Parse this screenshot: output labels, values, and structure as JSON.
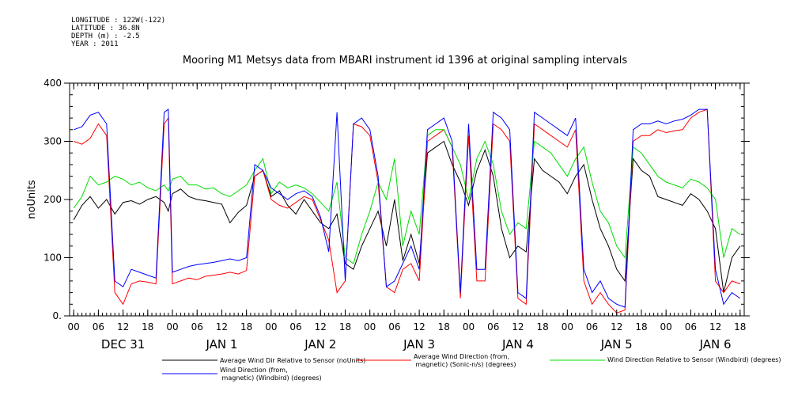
{
  "header": {
    "longitude": "LONGITUDE : 122W(-122)",
    "latitude": "LATITUDE : 36.8N",
    "depth": "DEPTH (m) : -2.5",
    "year": "YEAR : 2011"
  },
  "chart_data": {
    "type": "line",
    "title": "Mooring M1 Metsys data from MBARI instrument id 1396 at original sampling intervals",
    "ylabel": "noUnits",
    "xlabel": "",
    "ylim": [
      0,
      400
    ],
    "y_ticks": [
      0,
      100,
      200,
      300,
      400
    ],
    "y_tick_labels": [
      "0.",
      "100",
      "200",
      "300",
      "400"
    ],
    "x_unit": "hours since 2010-12-31 00:00",
    "xlim": [
      -1,
      163
    ],
    "hour_tick_labels": [
      "00",
      "06",
      "12",
      "18",
      "00",
      "06",
      "12",
      "18",
      "00",
      "06",
      "12",
      "18",
      "00",
      "06",
      "12",
      "18",
      "00",
      "06",
      "12",
      "18",
      "00",
      "06",
      "12",
      "18",
      "00",
      "06",
      "12",
      "18"
    ],
    "day_labels": [
      "DEC 31",
      "JAN  1",
      "JAN  2",
      "JAN  3",
      "JAN  4",
      "JAN  5",
      "JAN  6"
    ],
    "grid": false,
    "legend_position": "bottom",
    "series": [
      {
        "name": "Average Wind Dir Relative to Sensor (noUnits)",
        "color": "#000000",
        "x": [
          0,
          2,
          4,
          6,
          8,
          10,
          12,
          14,
          16,
          18,
          20,
          22,
          23,
          24,
          26,
          28,
          30,
          32,
          34,
          36,
          38,
          40,
          42,
          44,
          46,
          48,
          50,
          52,
          54,
          56,
          58,
          60,
          62,
          64,
          66,
          68,
          70,
          72,
          74,
          76,
          78,
          80,
          82,
          84,
          86,
          88,
          90,
          92,
          94,
          96,
          98,
          100,
          102,
          104,
          106,
          108,
          110,
          112,
          114,
          116,
          118,
          120,
          122,
          124,
          126,
          128,
          130,
          132,
          134,
          136,
          138,
          140,
          142,
          144,
          146,
          148,
          150,
          152,
          154,
          156,
          158,
          160,
          162
        ],
        "values": [
          165,
          190,
          205,
          185,
          200,
          175,
          195,
          198,
          192,
          200,
          205,
          195,
          180,
          210,
          218,
          205,
          200,
          198,
          195,
          192,
          160,
          178,
          190,
          240,
          250,
          205,
          215,
          190,
          175,
          200,
          180,
          160,
          150,
          175,
          90,
          80,
          120,
          150,
          180,
          120,
          200,
          95,
          140,
          90,
          280,
          290,
          300,
          260,
          230,
          190,
          250,
          285,
          240,
          150,
          100,
          120,
          110,
          270,
          250,
          240,
          230,
          210,
          240,
          260,
          200,
          150,
          120,
          80,
          60,
          270,
          250,
          240,
          205,
          200,
          195,
          190,
          210,
          200,
          180,
          150,
          40,
          100,
          120
        ]
      },
      {
        "name": "Average Wind Direction (from, magnetic) (Sonic-n/s) (degrees)",
        "color": "#ff0000",
        "x": [
          0,
          2,
          4,
          6,
          8,
          10,
          12,
          14,
          16,
          18,
          20,
          22,
          23,
          24,
          26,
          28,
          30,
          32,
          34,
          36,
          38,
          40,
          42,
          44,
          46,
          48,
          50,
          52,
          54,
          56,
          58,
          60,
          62,
          64,
          66,
          68,
          70,
          72,
          74,
          76,
          78,
          80,
          82,
          84,
          86,
          88,
          90,
          92,
          94,
          96,
          98,
          100,
          102,
          104,
          106,
          108,
          110,
          112,
          114,
          116,
          118,
          120,
          122,
          124,
          126,
          128,
          130,
          132,
          134,
          136,
          138,
          140,
          142,
          144,
          146,
          148,
          150,
          152,
          154,
          156,
          158,
          160,
          162
        ],
        "values": [
          300,
          295,
          305,
          330,
          310,
          40,
          20,
          55,
          60,
          58,
          55,
          330,
          340,
          55,
          60,
          65,
          62,
          68,
          70,
          72,
          75,
          72,
          78,
          240,
          250,
          200,
          190,
          185,
          195,
          205,
          200,
          165,
          130,
          40,
          60,
          330,
          325,
          310,
          230,
          50,
          40,
          80,
          90,
          60,
          300,
          310,
          320,
          290,
          30,
          310,
          60,
          60,
          330,
          320,
          300,
          30,
          20,
          330,
          320,
          310,
          300,
          290,
          320,
          60,
          20,
          40,
          20,
          5,
          10,
          300,
          310,
          310,
          320,
          315,
          318,
          320,
          340,
          350,
          355,
          60,
          40,
          60,
          55
        ]
      },
      {
        "name": "Wind Direction Relative to Sensor (Windbird) (degrees)",
        "color": "#00dd00",
        "x": [
          0,
          2,
          4,
          6,
          8,
          10,
          12,
          14,
          16,
          18,
          20,
          22,
          23,
          24,
          26,
          28,
          30,
          32,
          34,
          36,
          38,
          40,
          42,
          44,
          46,
          48,
          50,
          52,
          54,
          56,
          58,
          60,
          62,
          64,
          66,
          68,
          70,
          72,
          74,
          76,
          78,
          80,
          82,
          84,
          86,
          88,
          90,
          92,
          94,
          96,
          98,
          100,
          102,
          104,
          106,
          108,
          110,
          112,
          114,
          116,
          118,
          120,
          122,
          124,
          126,
          128,
          130,
          132,
          134,
          136,
          138,
          140,
          142,
          144,
          146,
          148,
          150,
          152,
          154,
          156,
          158,
          160,
          162
        ],
        "values": [
          185,
          205,
          240,
          225,
          230,
          240,
          235,
          225,
          230,
          220,
          215,
          225,
          215,
          235,
          240,
          225,
          225,
          218,
          220,
          210,
          205,
          215,
          225,
          250,
          270,
          210,
          230,
          220,
          225,
          220,
          210,
          195,
          180,
          230,
          100,
          90,
          140,
          180,
          230,
          200,
          270,
          120,
          180,
          140,
          310,
          320,
          320,
          290,
          260,
          200,
          270,
          300,
          260,
          180,
          140,
          160,
          150,
          300,
          290,
          280,
          260,
          240,
          270,
          290,
          230,
          180,
          160,
          120,
          100,
          290,
          280,
          260,
          240,
          230,
          225,
          220,
          235,
          230,
          220,
          200,
          100,
          150,
          140
        ]
      },
      {
        "name": "Wind Direction (from, magnetic) (Windbird) (degrees)",
        "color": "#0000ff",
        "x": [
          0,
          2,
          4,
          6,
          8,
          10,
          12,
          14,
          16,
          18,
          20,
          22,
          23,
          24,
          26,
          28,
          30,
          32,
          34,
          36,
          38,
          40,
          42,
          44,
          46,
          48,
          50,
          52,
          54,
          56,
          58,
          60,
          62,
          64,
          66,
          68,
          70,
          72,
          74,
          76,
          78,
          80,
          82,
          84,
          86,
          88,
          90,
          92,
          94,
          96,
          98,
          100,
          102,
          104,
          106,
          108,
          110,
          112,
          114,
          116,
          118,
          120,
          122,
          124,
          126,
          128,
          130,
          132,
          134,
          136,
          138,
          140,
          142,
          144,
          146,
          148,
          150,
          152,
          154,
          156,
          158,
          160,
          162
        ],
        "values": [
          320,
          325,
          345,
          350,
          330,
          60,
          50,
          80,
          75,
          70,
          65,
          350,
          355,
          75,
          80,
          85,
          88,
          90,
          92,
          95,
          98,
          95,
          100,
          260,
          250,
          220,
          210,
          200,
          210,
          215,
          205,
          170,
          110,
          350,
          60,
          330,
          340,
          320,
          240,
          50,
          60,
          90,
          120,
          80,
          320,
          330,
          340,
          300,
          40,
          330,
          80,
          80,
          350,
          340,
          320,
          40,
          30,
          350,
          340,
          330,
          320,
          310,
          340,
          80,
          40,
          60,
          30,
          20,
          15,
          320,
          330,
          330,
          335,
          330,
          335,
          338,
          345,
          355,
          355,
          80,
          20,
          40,
          30
        ]
      }
    ]
  }
}
